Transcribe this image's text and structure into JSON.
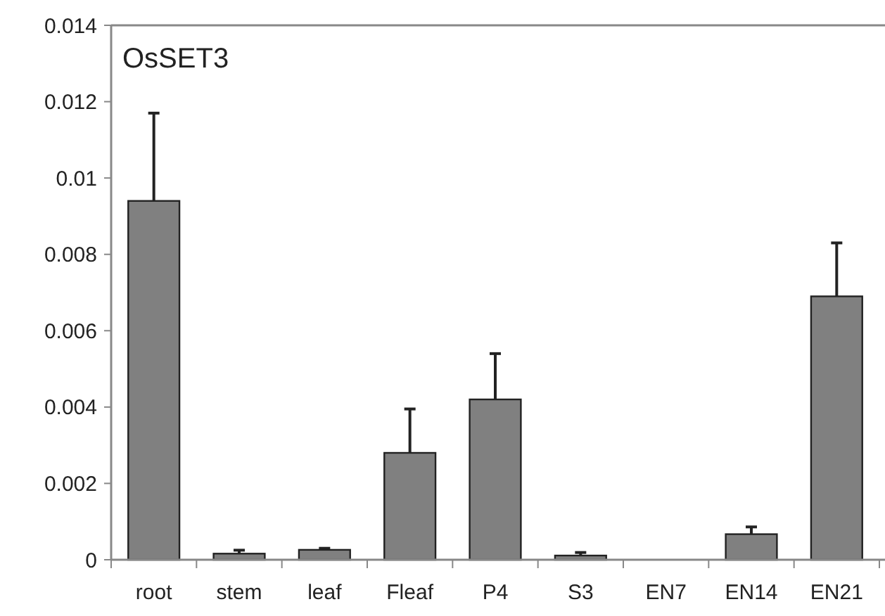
{
  "chart_data": {
    "type": "bar",
    "annotations": [
      "OsSET3"
    ],
    "categories": [
      "root",
      "stem",
      "leaf",
      "Fleaf",
      "P4",
      "S3",
      "EN7",
      "EN14",
      "EN21"
    ],
    "values": [
      0.0094,
      0.00016,
      0.00026,
      0.0028,
      0.0042,
      0.00011,
      0,
      0.00067,
      0.0069
    ],
    "errors": [
      [
        0.0094,
        0.0117
      ],
      [
        0.00016,
        0.00025
      ],
      [
        0.00026,
        0.0003
      ],
      [
        0.0028,
        0.00395
      ],
      [
        0.0042,
        0.0054
      ],
      [
        0.00011,
        0.00019
      ],
      null,
      [
        0.00067,
        0.00086
      ],
      [
        0.0069,
        0.0083
      ]
    ],
    "color": "#808080",
    "ylim": [
      0,
      0.014
    ],
    "yticks": [
      0,
      0.002,
      0.004,
      0.006,
      0.008,
      0.01,
      0.012,
      0.014
    ],
    "grid": false
  }
}
